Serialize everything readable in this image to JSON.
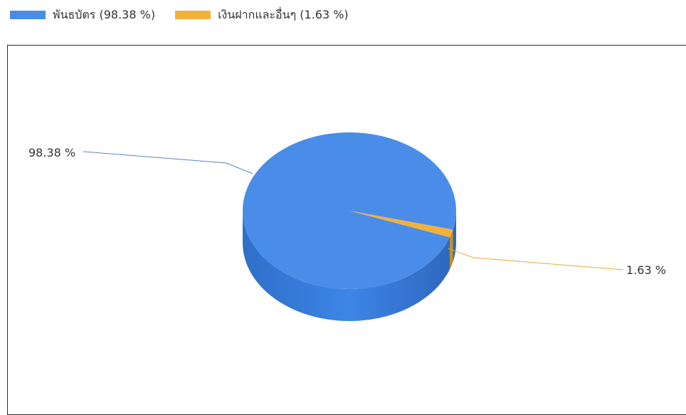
{
  "legend": [
    {
      "label": "พันธบัตร (98.38 %)",
      "color": "#4a8de8"
    },
    {
      "label": "เงินฝากและอื่นๆ (1.63 %)",
      "color": "#f2b13a"
    }
  ],
  "chart_data": {
    "type": "pie",
    "is_3d": true,
    "categories": [
      "พันธบัตร",
      "เงินฝากและอื่นๆ"
    ],
    "values": [
      98.38,
      1.63
    ],
    "colors": [
      "#4a8de8",
      "#f2b13a"
    ],
    "data_labels": [
      "98.38 %",
      "1.63 %"
    ],
    "legend_position": "top-left"
  }
}
